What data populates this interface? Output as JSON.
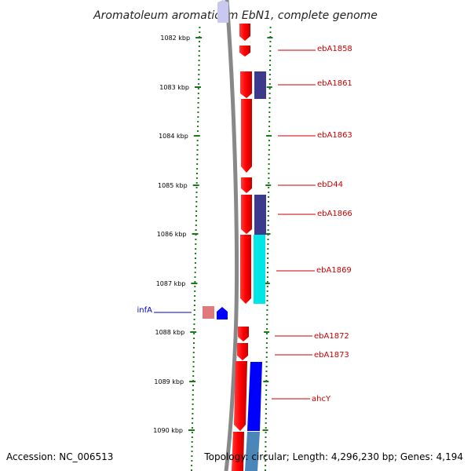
{
  "title": "Aromatoleum aromaticum EbN1, complete genome",
  "ticks": [
    "1082 kbp",
    "1083 kbp",
    "1084 kbp",
    "1085 kbp",
    "1086 kbp",
    "1087 kbp",
    "1088 kbp",
    "1089 kbp",
    "1090 kbp"
  ],
  "genes": [
    {
      "label": "ebA1858",
      "color": "#cc0000"
    },
    {
      "label": "ebA1861",
      "color": "#cc0000"
    },
    {
      "label": "ebA1863",
      "color": "#cc0000"
    },
    {
      "label": "ebD44",
      "color": "#cc0000"
    },
    {
      "label": "ebA1866",
      "color": "#cc0000"
    },
    {
      "label": "ebA1869",
      "color": "#cc0000"
    },
    {
      "label": "infA",
      "color": "#0000cc"
    },
    {
      "label": "ebA1872",
      "color": "#cc0000"
    },
    {
      "label": "ebA1873",
      "color": "#cc0000"
    },
    {
      "label": "ahcY",
      "color": "#cc0000"
    }
  ],
  "footer": {
    "accession": "Accession: NC_006513",
    "topology": "Topology: circular; Length: 4,296,230 bp; Genes: 4,194"
  },
  "colors": {
    "cds_red": "#ff0000",
    "cds_navy": "#3c3a8c",
    "cds_cyan": "#00e5e5",
    "cds_blue": "#0000ff",
    "cds_steel": "#4a86b8",
    "cds_pink": "#e07a7a",
    "cds_lavender": "#c8c8f0",
    "backbone": "#808080",
    "tick_green": "#1a7a1a"
  }
}
